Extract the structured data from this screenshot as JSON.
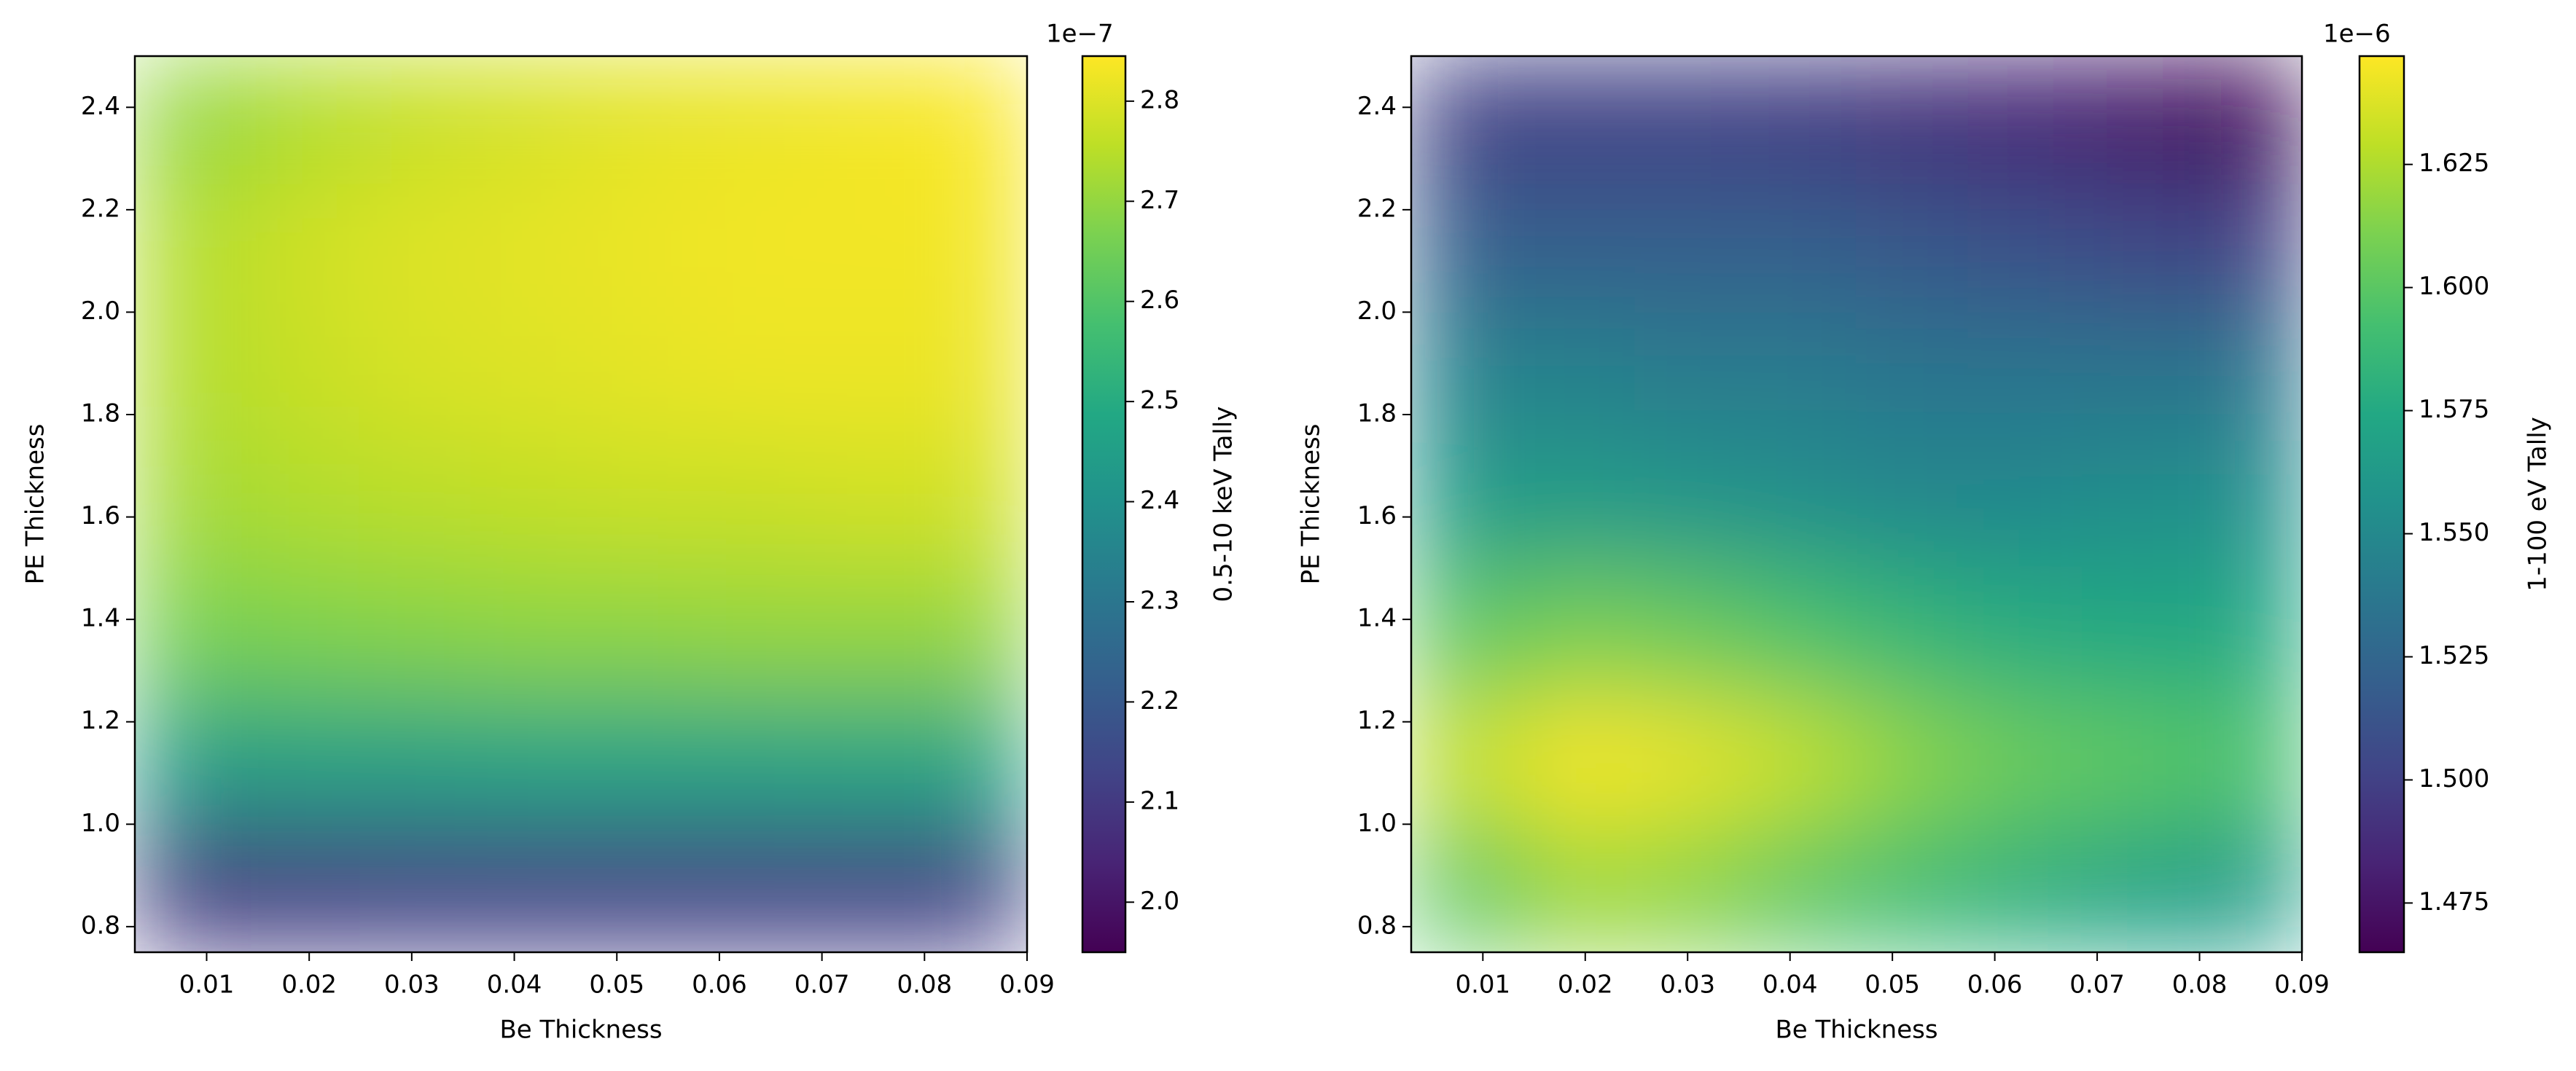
{
  "chart_data": [
    {
      "type": "heatmap",
      "colormap": "viridis",
      "xlabel": "Be Thickness",
      "ylabel": "PE Thickness",
      "x": [
        0.0084,
        0.0193,
        0.0302,
        0.0411,
        0.0519,
        0.0628,
        0.0737,
        0.0846
      ],
      "y": [
        0.875,
        1.125,
        1.375,
        1.625,
        1.875,
        2.125,
        2.375
      ],
      "z": [
        [
          2.1,
          2.11,
          2.12,
          2.12,
          2.12,
          2.12,
          2.12,
          2.12
        ],
        [
          2.45,
          2.46,
          2.46,
          2.47,
          2.47,
          2.47,
          2.48,
          2.48
        ],
        [
          2.66,
          2.67,
          2.68,
          2.69,
          2.69,
          2.7,
          2.7,
          2.7
        ],
        [
          2.72,
          2.74,
          2.75,
          2.76,
          2.77,
          2.77,
          2.78,
          2.78
        ],
        [
          2.74,
          2.77,
          2.79,
          2.8,
          2.81,
          2.82,
          2.82,
          2.82
        ],
        [
          2.74,
          2.78,
          2.8,
          2.81,
          2.82,
          2.83,
          2.83,
          2.83
        ],
        [
          2.7,
          2.74,
          2.77,
          2.79,
          2.81,
          2.82,
          2.83,
          2.84
        ]
      ],
      "xlim": [
        0.003,
        0.09
      ],
      "ylim": [
        0.75,
        2.5
      ],
      "xticks": [
        0.01,
        0.02,
        0.03,
        0.04,
        0.05,
        0.06,
        0.07,
        0.08,
        0.09
      ],
      "yticks": [
        0.8,
        {
          "value": 1,
          "label": "1.0"
        },
        1.2,
        1.4,
        1.6,
        1.8,
        {
          "value": 2,
          "label": "2.0"
        },
        2.2,
        2.4
      ],
      "colorbar": {
        "label": "0.5-10 keV Tally",
        "offset_text": "1e−7",
        "lim": [
          1.95,
          2.845
        ],
        "ticks": [
          {
            "value": 2,
            "label": "2.0"
          },
          2.1,
          2.2,
          2.3,
          2.4,
          2.5,
          2.6,
          2.7,
          2.8
        ]
      }
    },
    {
      "type": "heatmap",
      "colormap": "viridis",
      "xlabel": "Be Thickness",
      "ylabel": "PE Thickness",
      "x": [
        0.0084,
        0.0193,
        0.0302,
        0.0411,
        0.0519,
        0.0628,
        0.0737,
        0.0846
      ],
      "y": [
        0.875,
        1.125,
        1.375,
        1.625,
        1.875,
        2.125,
        2.375
      ],
      "z": [
        [
          1.6,
          1.62,
          1.615,
          1.6,
          1.59,
          1.58,
          1.57,
          1.565
        ],
        [
          1.63,
          1.645,
          1.64,
          1.63,
          1.615,
          1.605,
          1.6,
          1.595
        ],
        [
          1.6,
          1.61,
          1.605,
          1.595,
          1.585,
          1.577,
          1.575,
          1.575
        ],
        [
          1.565,
          1.565,
          1.56,
          1.555,
          1.55,
          1.55,
          1.555,
          1.555
        ],
        [
          1.545,
          1.545,
          1.54,
          1.54,
          1.535,
          1.535,
          1.535,
          1.535
        ],
        [
          1.52,
          1.52,
          1.52,
          1.52,
          1.515,
          1.51,
          1.505,
          1.5
        ],
        [
          1.5,
          1.5,
          1.5,
          1.497,
          1.49,
          1.485,
          1.478,
          1.47
        ]
      ],
      "xlim": [
        0.003,
        0.09
      ],
      "ylim": [
        0.75,
        2.5
      ],
      "xticks": [
        0.01,
        0.02,
        0.03,
        0.04,
        0.05,
        0.06,
        0.07,
        0.08,
        0.09
      ],
      "yticks": [
        0.8,
        {
          "value": 1,
          "label": "1.0"
        },
        1.2,
        1.4,
        1.6,
        1.8,
        {
          "value": 2,
          "label": "2.0"
        },
        2.2,
        2.4
      ],
      "colorbar": {
        "label": "1-100 eV Tally",
        "offset_text": "1e−6",
        "lim": [
          1.465,
          1.647
        ],
        "ticks": [
          1.475,
          {
            "value": 1.5,
            "label": "1.500"
          },
          1.525,
          {
            "value": 1.55,
            "label": "1.550"
          },
          1.575,
          {
            "value": 1.6,
            "label": "1.600"
          },
          1.625
        ]
      }
    }
  ]
}
